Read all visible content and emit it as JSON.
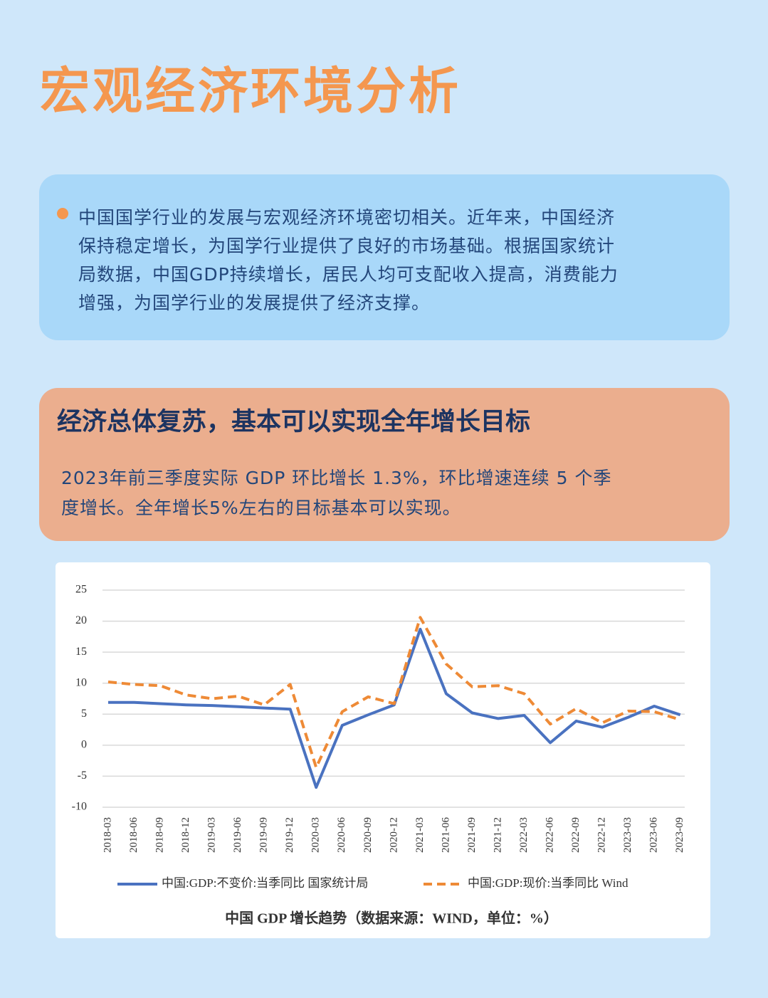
{
  "header": {
    "title": "宏观经济环境分析"
  },
  "intro": {
    "lines": [
      "中国国学行业的发展与宏观经济环境密切相关。近年来，中国经济",
      "保持稳定增长，为国学行业提供了良好的市场基础。根据国家统计",
      "局数据，中国GDP持续增长，居民人均可支配收入提高，消费能力",
      "增强，为国学行业的发展提供了经济支撑。"
    ]
  },
  "section": {
    "heading": "经济总体复苏，基本可以实现全年增长目标",
    "lines": [
      "2023年前三季度实际 GDP 环比增长 1.3%，环比增速连续 5 个季",
      "度增长。全年增长5%左右的目标基本可以实现。"
    ]
  },
  "chart_data": {
    "type": "line",
    "caption": "中国 GDP 增长趋势（数据来源：WIND，单位：%）",
    "categories": [
      "2018-03",
      "2018-06",
      "2018-09",
      "2018-12",
      "2019-03",
      "2019-06",
      "2019-09",
      "2019-12",
      "2020-03",
      "2020-06",
      "2020-09",
      "2020-12",
      "2021-03",
      "2021-06",
      "2021-09",
      "2021-12",
      "2022-03",
      "2022-06",
      "2022-09",
      "2022-12",
      "2023-03",
      "2023-06",
      "2023-09"
    ],
    "series": [
      {
        "name": "中国:GDP:不变价:当季同比 国家统计局",
        "color": "#4a72c0",
        "dashed": false,
        "values": [
          6.9,
          6.9,
          6.7,
          6.5,
          6.4,
          6.2,
          6.0,
          5.8,
          -6.8,
          3.2,
          4.9,
          6.5,
          18.7,
          8.3,
          5.2,
          4.3,
          4.8,
          0.4,
          3.9,
          2.9,
          4.5,
          6.3,
          4.9
        ]
      },
      {
        "name": "中国:GDP:现价:当季同比 Wind",
        "color": "#ee8a36",
        "dashed": true,
        "values": [
          10.2,
          9.8,
          9.6,
          8.1,
          7.5,
          7.9,
          6.5,
          9.8,
          -3.6,
          5.4,
          7.8,
          6.7,
          20.6,
          13.1,
          9.4,
          9.6,
          8.3,
          3.4,
          5.9,
          3.6,
          5.5,
          5.4,
          4.1
        ]
      }
    ],
    "ylim": [
      -10,
      25
    ],
    "yticks": [
      -10,
      -5,
      0,
      5,
      10,
      15,
      20,
      25
    ],
    "grid": true
  }
}
